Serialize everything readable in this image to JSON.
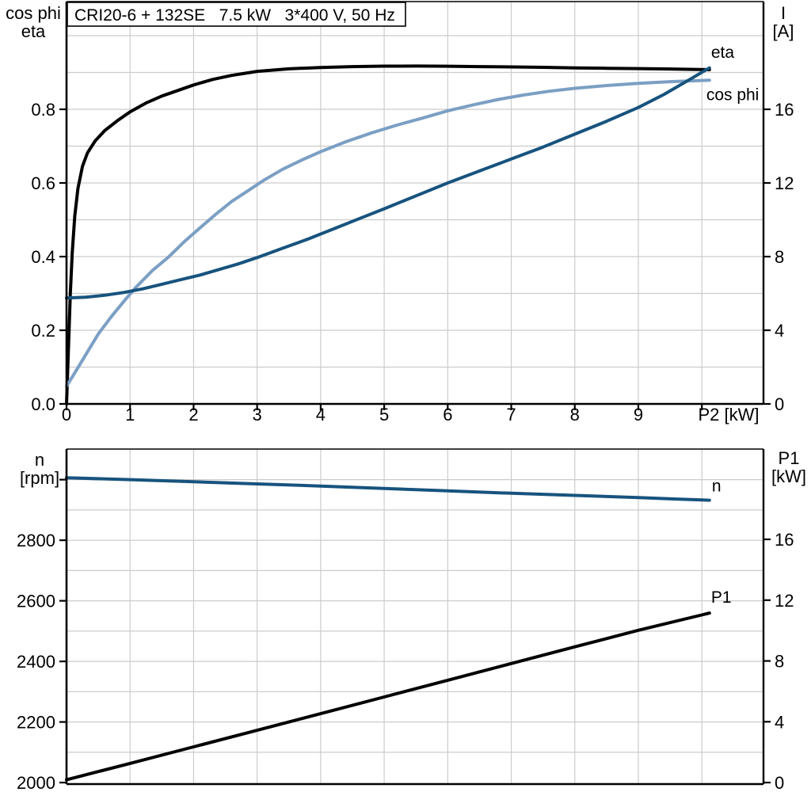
{
  "title_box": {
    "text": "CRI20-6 + 132SE   7.5 kW   3*400 V, 50 Hz"
  },
  "colors": {
    "eta": "#000000",
    "cos_phi": "#7b9fc4",
    "current": "#17537e",
    "speed": "#17537e",
    "p1": "#000000",
    "grid": "#cccccc",
    "axis": "#000000"
  },
  "chart_data": [
    {
      "type": "line",
      "name": "motor-performance",
      "title": "CRI20-6 + 132SE   7.5 kW   3*400 V, 50 Hz",
      "x_axis": {
        "label": "P2 [kW]",
        "range": [
          0,
          10.97
        ],
        "tick_values": [
          0,
          1,
          2,
          3,
          4,
          5,
          6,
          7,
          8,
          9,
          10
        ],
        "ticks": [
          "0",
          "1",
          "2",
          "3",
          "4",
          "5",
          "6",
          "7",
          "8",
          "9",
          ""
        ],
        "grid_from": 1,
        "grid_to": 10,
        "grid_step": 1
      },
      "left_axis": {
        "header": [
          "cos phi",
          "eta"
        ],
        "range": [
          0,
          1.0925
        ],
        "tick_values": [
          0,
          0.2,
          0.4,
          0.6,
          0.8
        ],
        "ticks": [
          "0.0",
          "0.2",
          "0.4",
          "0.6",
          "0.8"
        ],
        "grid_from": 0.1,
        "grid_to": 1.0,
        "grid_step": 0.1
      },
      "right_axis": {
        "header": [
          "I",
          "[A]"
        ],
        "range": [
          0,
          21.85
        ],
        "tick_values": [
          0,
          4,
          8,
          12,
          16
        ],
        "ticks": [
          "0",
          "4",
          "8",
          "12",
          "16"
        ]
      },
      "legend_position": "curve-end-labels",
      "grid": true,
      "series": [
        {
          "name": "eta",
          "label": "eta",
          "axis": "left_axis",
          "color": "#000000",
          "points": [
            [
              0,
              0
            ],
            [
              0.02,
              0.1
            ],
            [
              0.04,
              0.2
            ],
            [
              0.06,
              0.3
            ],
            [
              0.09,
              0.41
            ],
            [
              0.13,
              0.51
            ],
            [
              0.18,
              0.585
            ],
            [
              0.25,
              0.645
            ],
            [
              0.33,
              0.682
            ],
            [
              0.45,
              0.714
            ],
            [
              0.6,
              0.742
            ],
            [
              0.8,
              0.769
            ],
            [
              1.0,
              0.793
            ],
            [
              1.25,
              0.817
            ],
            [
              1.5,
              0.836
            ],
            [
              1.75,
              0.851
            ],
            [
              2.0,
              0.866
            ],
            [
              2.3,
              0.881
            ],
            [
              2.6,
              0.892
            ],
            [
              3.0,
              0.903
            ],
            [
              3.5,
              0.91
            ],
            [
              4.0,
              0.9135
            ],
            [
              4.5,
              0.916
            ],
            [
              5.0,
              0.9172
            ],
            [
              5.5,
              0.9175
            ],
            [
              6.0,
              0.917
            ],
            [
              6.5,
              0.916
            ],
            [
              7.0,
              0.915
            ],
            [
              7.5,
              0.914
            ],
            [
              8.0,
              0.9125
            ],
            [
              8.5,
              0.9115
            ],
            [
              9.0,
              0.9105
            ],
            [
              9.5,
              0.9095
            ],
            [
              10.12,
              0.9075
            ]
          ]
        },
        {
          "name": "cos phi",
          "label": "cos phi",
          "axis": "left_axis",
          "color": "#7b9fc4",
          "points": [
            [
              0,
              0.048
            ],
            [
              0.15,
              0.09
            ],
            [
              0.3,
              0.133
            ],
            [
              0.5,
              0.19
            ],
            [
              0.7,
              0.236
            ],
            [
              0.9,
              0.278
            ],
            [
              1.1,
              0.318
            ],
            [
              1.35,
              0.362
            ],
            [
              1.6,
              0.398
            ],
            [
              1.85,
              0.44
            ],
            [
              2.1,
              0.478
            ],
            [
              2.35,
              0.515
            ],
            [
              2.6,
              0.55
            ],
            [
              2.85,
              0.578
            ],
            [
              3.1,
              0.607
            ],
            [
              3.4,
              0.637
            ],
            [
              3.7,
              0.662
            ],
            [
              4.0,
              0.685
            ],
            [
              4.4,
              0.712
            ],
            [
              4.8,
              0.736
            ],
            [
              5.2,
              0.757
            ],
            [
              5.6,
              0.776
            ],
            [
              6.0,
              0.796
            ],
            [
              6.4,
              0.812
            ],
            [
              6.8,
              0.827
            ],
            [
              7.2,
              0.839
            ],
            [
              7.6,
              0.849
            ],
            [
              8.0,
              0.857
            ],
            [
              8.5,
              0.8645
            ],
            [
              9.0,
              0.8705
            ],
            [
              9.5,
              0.875
            ],
            [
              10.12,
              0.879
            ]
          ]
        },
        {
          "name": "I",
          "label": "",
          "axis": "right_axis",
          "color": "#17537e",
          "points": [
            [
              0,
              5.75
            ],
            [
              0.3,
              5.8
            ],
            [
              0.6,
              5.9
            ],
            [
              0.9,
              6.05
            ],
            [
              1.2,
              6.25
            ],
            [
              1.5,
              6.5
            ],
            [
              1.8,
              6.75
            ],
            [
              2.1,
              7.0
            ],
            [
              2.4,
              7.3
            ],
            [
              2.7,
              7.6
            ],
            [
              3.0,
              7.95
            ],
            [
              3.4,
              8.45
            ],
            [
              3.8,
              8.95
            ],
            [
              4.2,
              9.5
            ],
            [
              4.6,
              10.05
            ],
            [
              5.0,
              10.6
            ],
            [
              5.5,
              11.3
            ],
            [
              6.0,
              12.0
            ],
            [
              6.5,
              12.65
            ],
            [
              7.0,
              13.3
            ],
            [
              7.5,
              13.95
            ],
            [
              8.0,
              14.65
            ],
            [
              8.5,
              15.35
            ],
            [
              9.0,
              16.1
            ],
            [
              9.4,
              16.8
            ],
            [
              9.8,
              17.6
            ],
            [
              10.12,
              18.25
            ]
          ]
        }
      ]
    },
    {
      "type": "line",
      "name": "speed-and-input-power",
      "title": "",
      "x_axis": {
        "label": "",
        "range": [
          0,
          10.97
        ],
        "tick_values": [],
        "ticks": [],
        "grid_from": 1,
        "grid_to": 10,
        "grid_step": 1
      },
      "left_axis": {
        "header": [
          "n",
          "[rpm]"
        ],
        "range": [
          1995,
          3101
        ],
        "tick_values": [
          2000,
          2200,
          2400,
          2600,
          2800,
          3000
        ],
        "ticks": [
          "2000",
          "2200",
          "2400",
          "2600",
          "2800",
          ""
        ],
        "grid_from": 2100,
        "grid_to": 3000,
        "grid_step": 100
      },
      "right_axis": {
        "header": [
          "P1",
          "[kW]"
        ],
        "range": [
          -0.1,
          21.94
        ],
        "tick_values": [
          0,
          4,
          8,
          12,
          16
        ],
        "ticks": [
          "0",
          "4",
          "8",
          "12",
          "16"
        ]
      },
      "legend_position": "curve-end-labels",
      "grid": true,
      "series": [
        {
          "name": "n",
          "label": "n",
          "axis": "left_axis",
          "color": "#17537e",
          "points": [
            [
              0,
              3006
            ],
            [
              1,
              3000
            ],
            [
              2,
              2993
            ],
            [
              3,
              2986
            ],
            [
              4,
              2979
            ],
            [
              5,
              2971
            ],
            [
              6,
              2963
            ],
            [
              7,
              2955
            ],
            [
              8,
              2948
            ],
            [
              9,
              2941
            ],
            [
              9.6,
              2936
            ],
            [
              10.12,
              2932
            ]
          ]
        },
        {
          "name": "P1",
          "label": "P1",
          "axis": "right_axis",
          "color": "#000000",
          "points": [
            [
              0,
              0.18
            ],
            [
              1,
              1.26
            ],
            [
              2,
              2.35
            ],
            [
              3,
              3.44
            ],
            [
              4,
              4.53
            ],
            [
              5,
              5.63
            ],
            [
              6,
              6.73
            ],
            [
              7,
              7.83
            ],
            [
              8,
              8.93
            ],
            [
              9,
              10.02
            ],
            [
              10.12,
              11.15
            ]
          ]
        }
      ]
    }
  ]
}
